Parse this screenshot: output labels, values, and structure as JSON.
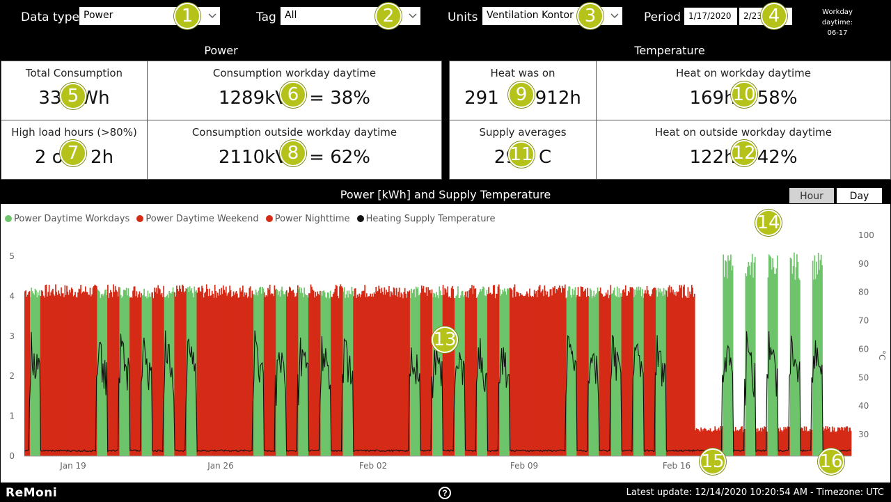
{
  "filters": {
    "data_type_label": "Data type",
    "data_type_value": "Power",
    "tag_label": "Tag",
    "tag_value": "All",
    "units_label": "Units",
    "units_value": "Ventilation Kontor",
    "period_label": "Period",
    "period_start": "1/17/2020",
    "period_end": "2/23",
    "workday_label": "Workday daytime:",
    "workday_value": "06-17"
  },
  "power": {
    "title": "Power",
    "total_label": "Total Consumption",
    "total_value": "339  Wh",
    "workday_label": "Consumption workday daytime",
    "workday_value": "1289kV  = 38%",
    "highload_label": "High load hours (>80%)",
    "highload_value": "2 o   2h",
    "outside_label": "Consumption outside workday daytime",
    "outside_value": "2110kV  = 62%"
  },
  "temperature": {
    "title": "Temperature",
    "heat_label": "Heat was on",
    "heat_value": "291  912h",
    "heat_workday_label": "Heat on workday daytime",
    "heat_workday_value": "169h  58%",
    "supply_label": "Supply averages",
    "supply_value": "29  C",
    "heat_outside_label": "Heat on outside workday daytime",
    "heat_outside_value": "122h  42%"
  },
  "chart": {
    "title": "Power [kWh] and Supply Temperature",
    "hour_label": "Hour",
    "day_label": "Day",
    "legend": [
      {
        "label": "Power Daytime Workdays",
        "color": "#6dc46a"
      },
      {
        "label": "Power Daytime Weekend",
        "color": "#d42a16"
      },
      {
        "label": "Power Nighttime",
        "color": "#d42a16"
      },
      {
        "label": "Heating Supply Temperature",
        "color": "#111111"
      }
    ],
    "y_ticks": [
      "0",
      "1",
      "2",
      "3",
      "4",
      "5"
    ],
    "y2_ticks": [
      "30",
      "40",
      "50",
      "60",
      "70",
      "80",
      "90",
      "100"
    ],
    "y2_unit": "°C",
    "x_ticks": [
      "Jan 19",
      "Jan 26",
      "Feb 02",
      "Feb 09",
      "Feb 16"
    ]
  },
  "chart_data": {
    "type": "bar",
    "title": "Power [kWh] and Supply Temperature",
    "xlabel": "",
    "ylabel": "",
    "y2label": "°C",
    "ylim": [
      0,
      5.5
    ],
    "y2lim": [
      22,
      100
    ],
    "x_range": [
      "2020-01-17",
      "2020-02-23"
    ],
    "legend_position": "top-left",
    "series": [
      {
        "name": "Power Daytime Workdays",
        "type": "bar",
        "color": "#6dc46a",
        "values_kwh_typical": 4.1,
        "late_period_peak_kwh": 5.1
      },
      {
        "name": "Power Daytime Weekend",
        "type": "bar",
        "color": "#d42a16",
        "values_kwh_typical": 4.1
      },
      {
        "name": "Power Nighttime",
        "type": "bar",
        "color": "#d42a16",
        "values_kwh_typical": 4.1,
        "late_period_kwh": 0.7
      },
      {
        "name": "Heating Supply Temperature",
        "type": "line",
        "axis": "y2",
        "color": "#111111",
        "daily_peak_c": 50,
        "night_c": 24
      }
    ]
  },
  "footer": {
    "logo": "ReMoni",
    "help": "?",
    "updated": "Latest update: 12/14/2020 10:20:54 AM - Timezone: UTC"
  },
  "markers": [
    "1",
    "2",
    "3",
    "4",
    "5",
    "6",
    "7",
    "8",
    "9",
    "10",
    "11",
    "12",
    "13",
    "14",
    "15",
    "16"
  ]
}
